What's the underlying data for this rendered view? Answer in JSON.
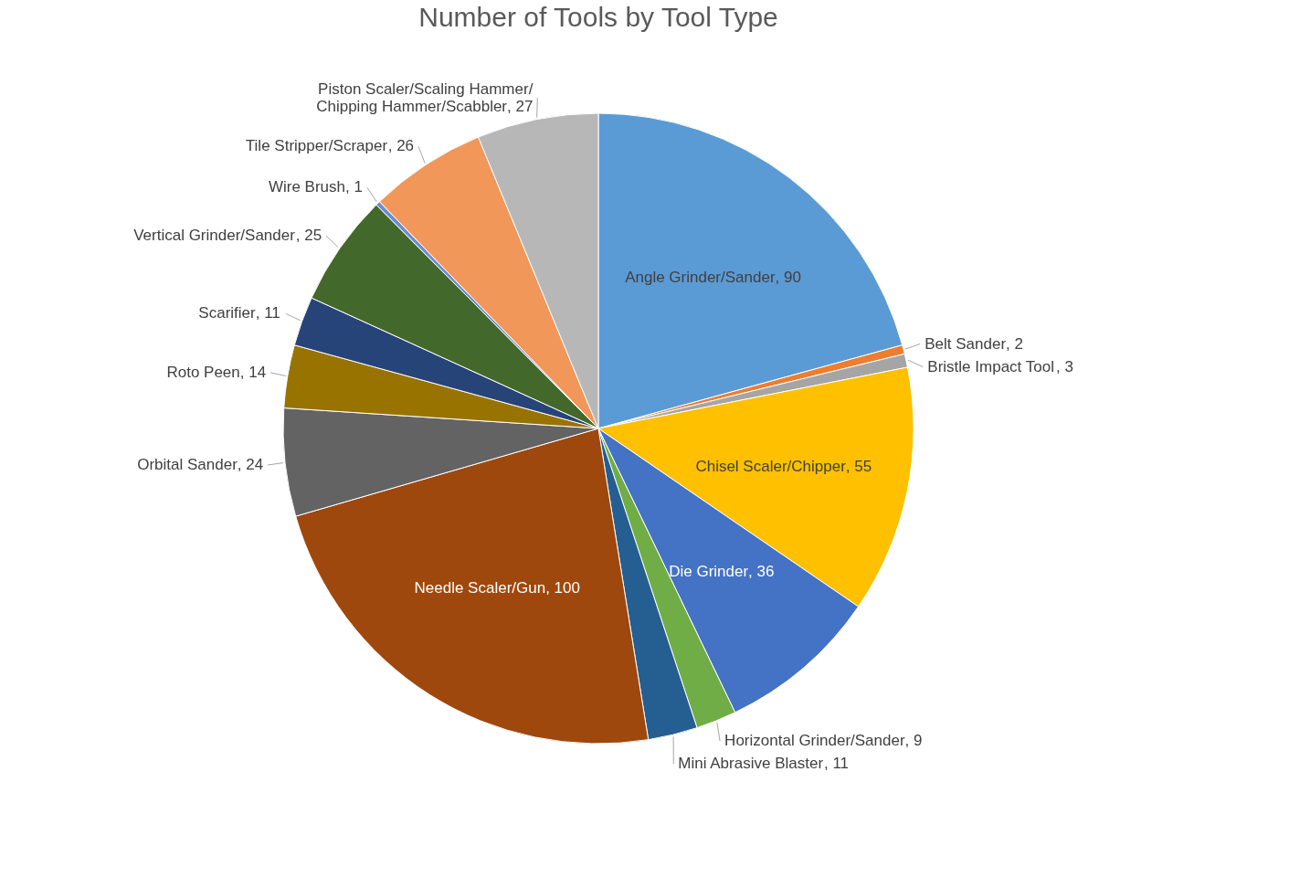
{
  "chart_data": {
    "type": "pie",
    "title": "Number of Tools by Tool Type",
    "categories": [
      "Angle Grinder/Sander",
      "Belt Sander",
      "Bristle Impact Tool",
      "Chisel Scaler/Chipper",
      "Die Grinder",
      "Horizontal Grinder/Sander",
      "Mini Abrasive Blaster",
      "Needle Scaler/Gun",
      "Orbital Sander",
      "Roto Peen",
      "Scarifier",
      "Vertical Grinder/Sander",
      "Wire Brush",
      "Tile Stripper/Scraper",
      "Piston Scaler/Scaling Hammer/Chipping Hammer/Scabbler"
    ],
    "values": [
      90,
      2,
      3,
      55,
      36,
      9,
      11,
      100,
      24,
      14,
      11,
      25,
      1,
      26,
      27
    ],
    "colors": [
      "#5b9bd5",
      "#ed7d31",
      "#a5a5a5",
      "#ffc000",
      "#4472c4",
      "#70ad47",
      "#255e91",
      "#9e480e",
      "#636363",
      "#997300",
      "#264478",
      "#43682b",
      "#698ed0",
      "#f1975a",
      "#b7b7b7"
    ],
    "value_labels": [
      ", 90",
      ", 2",
      ", 3",
      ", 55",
      ", 36",
      ", 9",
      ", 11",
      ", 100",
      ", 24",
      ", 14",
      ", 11",
      ", 25",
      ", 1",
      ", 26",
      ", 27"
    ],
    "legend": false
  }
}
